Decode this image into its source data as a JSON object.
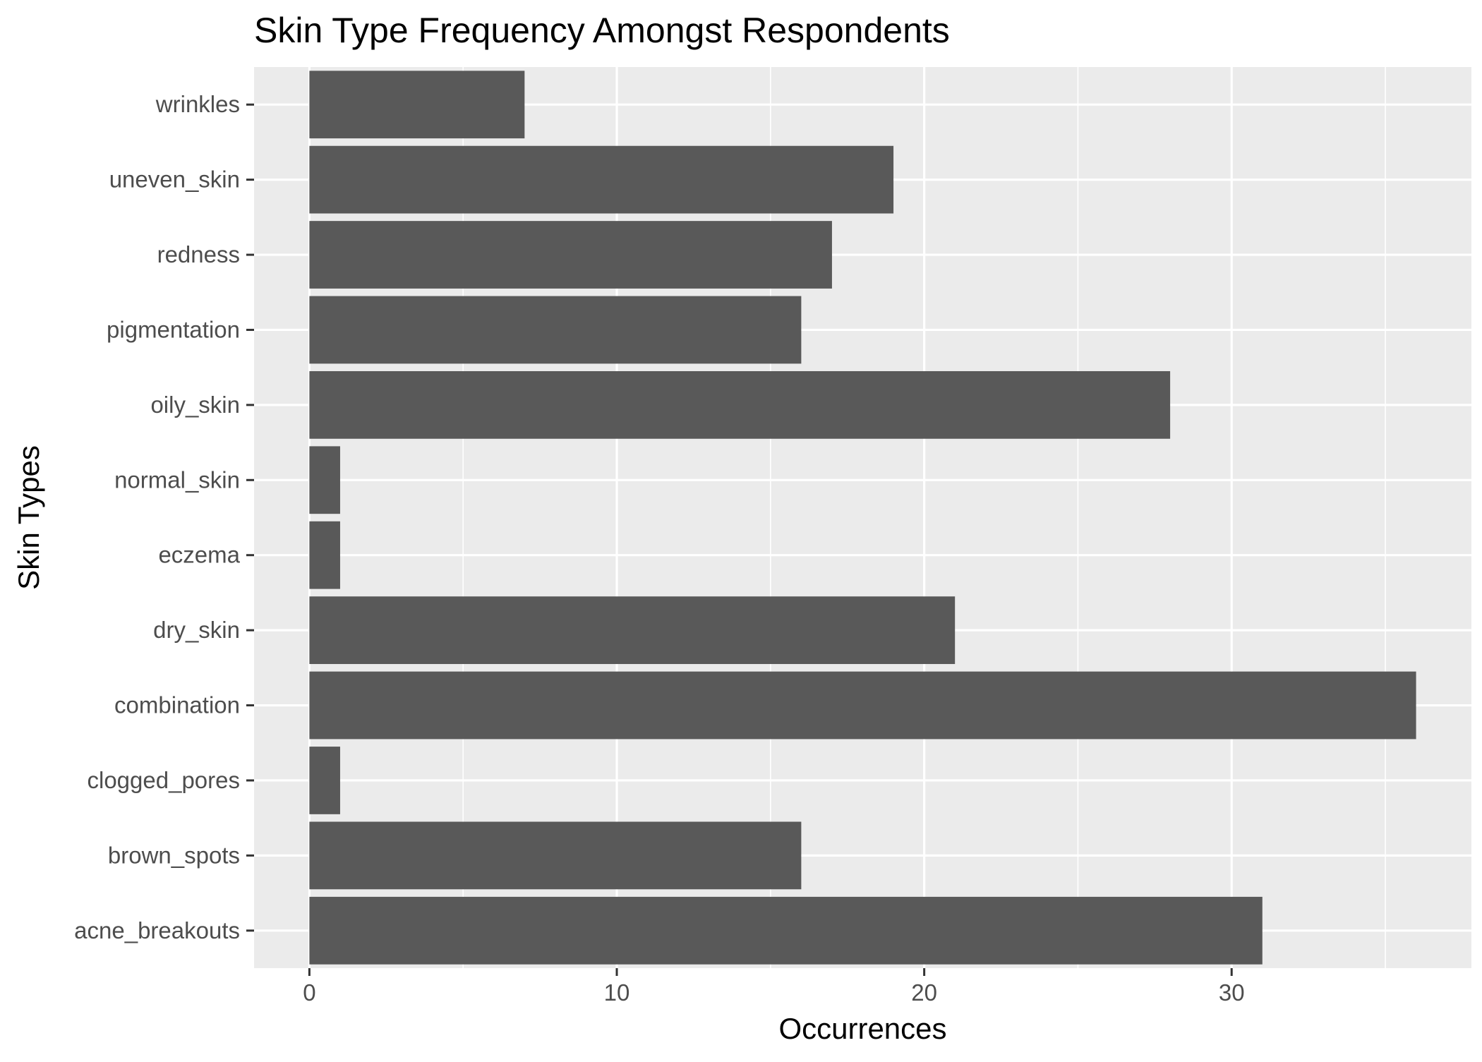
{
  "chart_data": {
    "type": "bar",
    "orientation": "horizontal",
    "title": "Skin Type Frequency Amongst Respondents",
    "xlabel": "Occurrences",
    "ylabel": "Skin Types",
    "categories": [
      "acne_breakouts",
      "brown_spots",
      "clogged_pores",
      "combination",
      "dry_skin",
      "eczema",
      "normal_skin",
      "oily_skin",
      "pigmentation",
      "redness",
      "uneven_skin",
      "wrinkles"
    ],
    "values": [
      31,
      16,
      1,
      36,
      21,
      1,
      1,
      28,
      16,
      17,
      19,
      7
    ],
    "xlim": [
      -1.8,
      37.8
    ],
    "xticks": [
      0,
      10,
      20,
      30
    ],
    "grid": true,
    "legend": "none",
    "colors": {
      "bar": "#595959",
      "panel_background": "#ebebeb",
      "grid": "#ffffff",
      "tick_text": "#4d4d4d",
      "tick_mark": "#333333"
    }
  }
}
